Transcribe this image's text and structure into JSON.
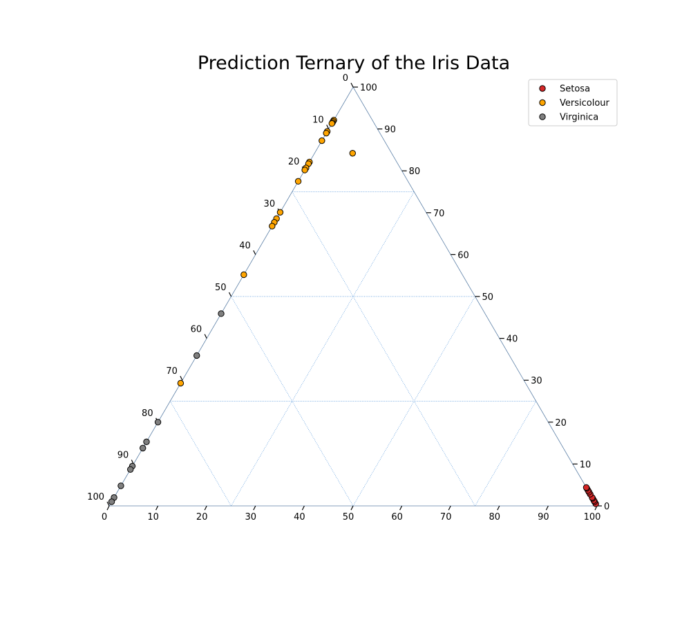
{
  "chart_data": {
    "type": "scatter",
    "subtype": "ternary",
    "title": "Prediction Ternary of the Iris Data",
    "scale": 100,
    "grid": true,
    "grid_multiple": 25,
    "legend_placement": "top-right",
    "axes": {
      "bottom": {
        "ticks": [
          "0",
          "10",
          "20",
          "30",
          "40",
          "50",
          "60",
          "70",
          "80",
          "90",
          "100"
        ]
      },
      "left": {
        "ticks": [
          "0",
          "10",
          "20",
          "30",
          "40",
          "50",
          "60",
          "70",
          "80",
          "90",
          "100"
        ]
      },
      "right": {
        "ticks": [
          "0",
          "10",
          "20",
          "30",
          "40",
          "50",
          "60",
          "70",
          "80",
          "90",
          "100"
        ]
      }
    },
    "series": [
      {
        "name": "Setosa",
        "color": "#d62728",
        "points": [
          [
            99.5,
            0.5,
            0.0
          ],
          [
            99.0,
            1.0,
            0.0
          ],
          [
            98.7,
            1.3,
            0.0
          ],
          [
            98.2,
            1.8,
            0.0
          ],
          [
            98.0,
            2.0,
            0.0
          ],
          [
            97.2,
            2.8,
            0.0
          ],
          [
            96.7,
            3.3,
            0.0
          ],
          [
            96.3,
            3.7,
            0.0
          ],
          [
            95.8,
            4.2,
            0.0
          ],
          [
            95.6,
            4.4,
            0.0
          ]
        ]
      },
      {
        "name": "Versicolour",
        "color": "#ffa500",
        "points": [
          [
            0,
            92.1,
            7.9
          ],
          [
            0,
            91.8,
            8.2
          ],
          [
            0,
            91.5,
            8.5
          ],
          [
            0,
            91.3,
            8.7
          ],
          [
            0,
            89.4,
            10.6
          ],
          [
            0,
            89.0,
            11.0
          ],
          [
            0,
            87.2,
            12.8
          ],
          [
            7.8,
            84.2,
            8.0
          ],
          [
            0,
            82.1,
            17.9
          ],
          [
            0,
            81.7,
            18.3
          ],
          [
            0,
            80.7,
            19.3
          ],
          [
            0,
            80.2,
            19.8
          ],
          [
            0,
            77.5,
            22.5
          ],
          [
            0,
            70.1,
            29.9
          ],
          [
            0,
            68.6,
            31.4
          ],
          [
            0,
            67.7,
            32.3
          ],
          [
            0,
            66.8,
            33.2
          ],
          [
            0,
            55.2,
            44.8
          ],
          [
            0,
            29.3,
            70.7
          ]
        ]
      },
      {
        "name": "Virginica",
        "color": "#808080",
        "points": [
          [
            0,
            45.9,
            54.1
          ],
          [
            0,
            35.9,
            64.1
          ],
          [
            0,
            20.0,
            80.0
          ],
          [
            0,
            15.3,
            84.7
          ],
          [
            0,
            13.8,
            86.2
          ],
          [
            0,
            9.5,
            90.5
          ],
          [
            0,
            8.7,
            91.3
          ],
          [
            0,
            4.8,
            95.2
          ],
          [
            0,
            2.0,
            98.0
          ],
          [
            0,
            1.0,
            99.0
          ]
        ]
      }
    ]
  }
}
